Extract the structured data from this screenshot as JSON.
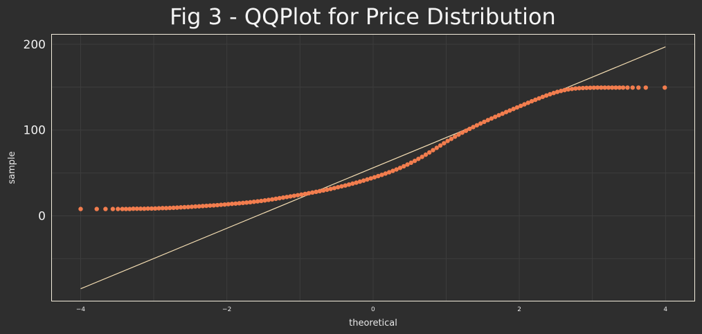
{
  "chart_data": {
    "type": "scatter",
    "title": "Fig 3 - QQPlot for Price Distribution",
    "xlabel": "theoretical",
    "ylabel": "sample",
    "xlim": [
      -4.2,
      4.2
    ],
    "ylim": [
      -100,
      212
    ],
    "x_ticks": [
      -4,
      -2,
      0,
      2,
      4
    ],
    "x_tick_labels": [
      "−4",
      "−2",
      "0",
      "2",
      "4"
    ],
    "y_ticks": [
      0,
      100,
      200
    ],
    "y_tick_labels": [
      "0",
      "100",
      "200"
    ],
    "grid": true,
    "series": [
      {
        "kind": "points",
        "color": "#f27d4e",
        "points": [
          [
            -4.0,
            8
          ],
          [
            -3.78,
            8
          ],
          [
            -3.66,
            8
          ],
          [
            -3.56,
            8
          ],
          [
            -3.49,
            8
          ],
          [
            -3.43,
            8
          ],
          [
            -3.38,
            8
          ],
          [
            -3.33,
            8
          ],
          [
            -3.28,
            8.3
          ],
          [
            -3.23,
            8.3
          ],
          [
            -3.18,
            8.3
          ],
          [
            -3.13,
            8.3
          ],
          [
            -3.08,
            8.5
          ],
          [
            -3.03,
            8.5
          ],
          [
            -2.98,
            8.6
          ],
          [
            -2.93,
            8.8
          ],
          [
            -2.88,
            9
          ],
          [
            -2.83,
            9
          ],
          [
            -2.78,
            9.2
          ],
          [
            -2.73,
            9.4
          ],
          [
            -2.68,
            9.6
          ],
          [
            -2.63,
            9.9
          ],
          [
            -2.58,
            10.1
          ],
          [
            -2.53,
            10.3
          ],
          [
            -2.48,
            10.6
          ],
          [
            -2.43,
            10.9
          ],
          [
            -2.38,
            11.1
          ],
          [
            -2.33,
            11.4
          ],
          [
            -2.28,
            11.7
          ],
          [
            -2.23,
            12
          ],
          [
            -2.18,
            12.2
          ],
          [
            -2.13,
            12.5
          ],
          [
            -2.08,
            12.9
          ],
          [
            -2.03,
            13.2
          ],
          [
            -1.98,
            13.6
          ],
          [
            -1.93,
            14
          ],
          [
            -1.88,
            14.3
          ],
          [
            -1.83,
            14.7
          ],
          [
            -1.78,
            15.1
          ],
          [
            -1.73,
            15.5
          ],
          [
            -1.68,
            15.9
          ],
          [
            -1.63,
            16.4
          ],
          [
            -1.58,
            16.9
          ],
          [
            -1.53,
            17.4
          ],
          [
            -1.48,
            18
          ],
          [
            -1.43,
            18.6
          ],
          [
            -1.38,
            19.2
          ],
          [
            -1.33,
            19.9
          ],
          [
            -1.28,
            20.6
          ],
          [
            -1.23,
            21.3
          ],
          [
            -1.18,
            22
          ],
          [
            -1.13,
            22.7
          ],
          [
            -1.08,
            23.4
          ],
          [
            -1.03,
            24.1
          ],
          [
            -0.98,
            24.8
          ],
          [
            -0.93,
            25.6
          ],
          [
            -0.88,
            26.4
          ],
          [
            -0.83,
            27.2
          ],
          [
            -0.78,
            28
          ],
          [
            -0.73,
            28.8
          ],
          [
            -0.68,
            29.6
          ],
          [
            -0.63,
            30.5
          ],
          [
            -0.58,
            31.4
          ],
          [
            -0.53,
            32.4
          ],
          [
            -0.48,
            33.4
          ],
          [
            -0.43,
            34.4
          ],
          [
            -0.38,
            35.4
          ],
          [
            -0.33,
            36.5
          ],
          [
            -0.28,
            37.6
          ],
          [
            -0.23,
            38.7
          ],
          [
            -0.18,
            39.9
          ],
          [
            -0.13,
            41.1
          ],
          [
            -0.08,
            42.4
          ],
          [
            -0.03,
            43.7
          ],
          [
            0.02,
            45
          ],
          [
            0.07,
            46.4
          ],
          [
            0.12,
            47.8
          ],
          [
            0.17,
            49.3
          ],
          [
            0.22,
            50.8
          ],
          [
            0.27,
            52.4
          ],
          [
            0.32,
            54.1
          ],
          [
            0.37,
            55.9
          ],
          [
            0.42,
            57.8
          ],
          [
            0.47,
            59.8
          ],
          [
            0.52,
            61.9
          ],
          [
            0.57,
            64.1
          ],
          [
            0.62,
            66.4
          ],
          [
            0.67,
            68.8
          ],
          [
            0.72,
            71.3
          ],
          [
            0.77,
            73.9
          ],
          [
            0.82,
            76.6
          ],
          [
            0.87,
            79.3
          ],
          [
            0.92,
            82
          ],
          [
            0.97,
            84.7
          ],
          [
            1.02,
            87.3
          ],
          [
            1.07,
            89.8
          ],
          [
            1.12,
            92.3
          ],
          [
            1.17,
            94.7
          ],
          [
            1.22,
            97
          ],
          [
            1.27,
            99.2
          ],
          [
            1.32,
            101.4
          ],
          [
            1.37,
            103.5
          ],
          [
            1.42,
            105.6
          ],
          [
            1.47,
            107.6
          ],
          [
            1.52,
            109.6
          ],
          [
            1.57,
            111.6
          ],
          [
            1.62,
            113.5
          ],
          [
            1.67,
            115.4
          ],
          [
            1.72,
            117.3
          ],
          [
            1.77,
            119.1
          ],
          [
            1.82,
            121
          ],
          [
            1.87,
            122.8
          ],
          [
            1.92,
            124.6
          ],
          [
            1.97,
            126.4
          ],
          [
            2.02,
            128.2
          ],
          [
            2.07,
            130
          ],
          [
            2.12,
            131.8
          ],
          [
            2.17,
            133.6
          ],
          [
            2.22,
            135.3
          ],
          [
            2.27,
            137
          ],
          [
            2.32,
            138.7
          ],
          [
            2.37,
            140.3
          ],
          [
            2.42,
            141.8
          ],
          [
            2.47,
            143.2
          ],
          [
            2.52,
            144.5
          ],
          [
            2.57,
            145.6
          ],
          [
            2.62,
            146.6
          ],
          [
            2.67,
            147.4
          ],
          [
            2.72,
            148
          ],
          [
            2.77,
            148.5
          ],
          [
            2.82,
            148.8
          ],
          [
            2.87,
            149
          ],
          [
            2.92,
            149.2
          ],
          [
            2.97,
            149.3
          ],
          [
            3.02,
            149.4
          ],
          [
            3.07,
            149.5
          ],
          [
            3.12,
            149.5
          ],
          [
            3.17,
            149.5
          ],
          [
            3.22,
            149.5
          ],
          [
            3.27,
            149.5
          ],
          [
            3.32,
            149.5
          ],
          [
            3.37,
            149.5
          ],
          [
            3.42,
            149.5
          ],
          [
            3.48,
            149.5
          ],
          [
            3.55,
            149.5
          ],
          [
            3.63,
            149.5
          ],
          [
            3.73,
            149.5
          ],
          [
            3.99,
            149.5
          ]
        ]
      },
      {
        "kind": "reference-line",
        "color": "#f5deb3",
        "x": [
          -4.0,
          4.0
        ],
        "y": [
          -85,
          197
        ]
      }
    ]
  }
}
